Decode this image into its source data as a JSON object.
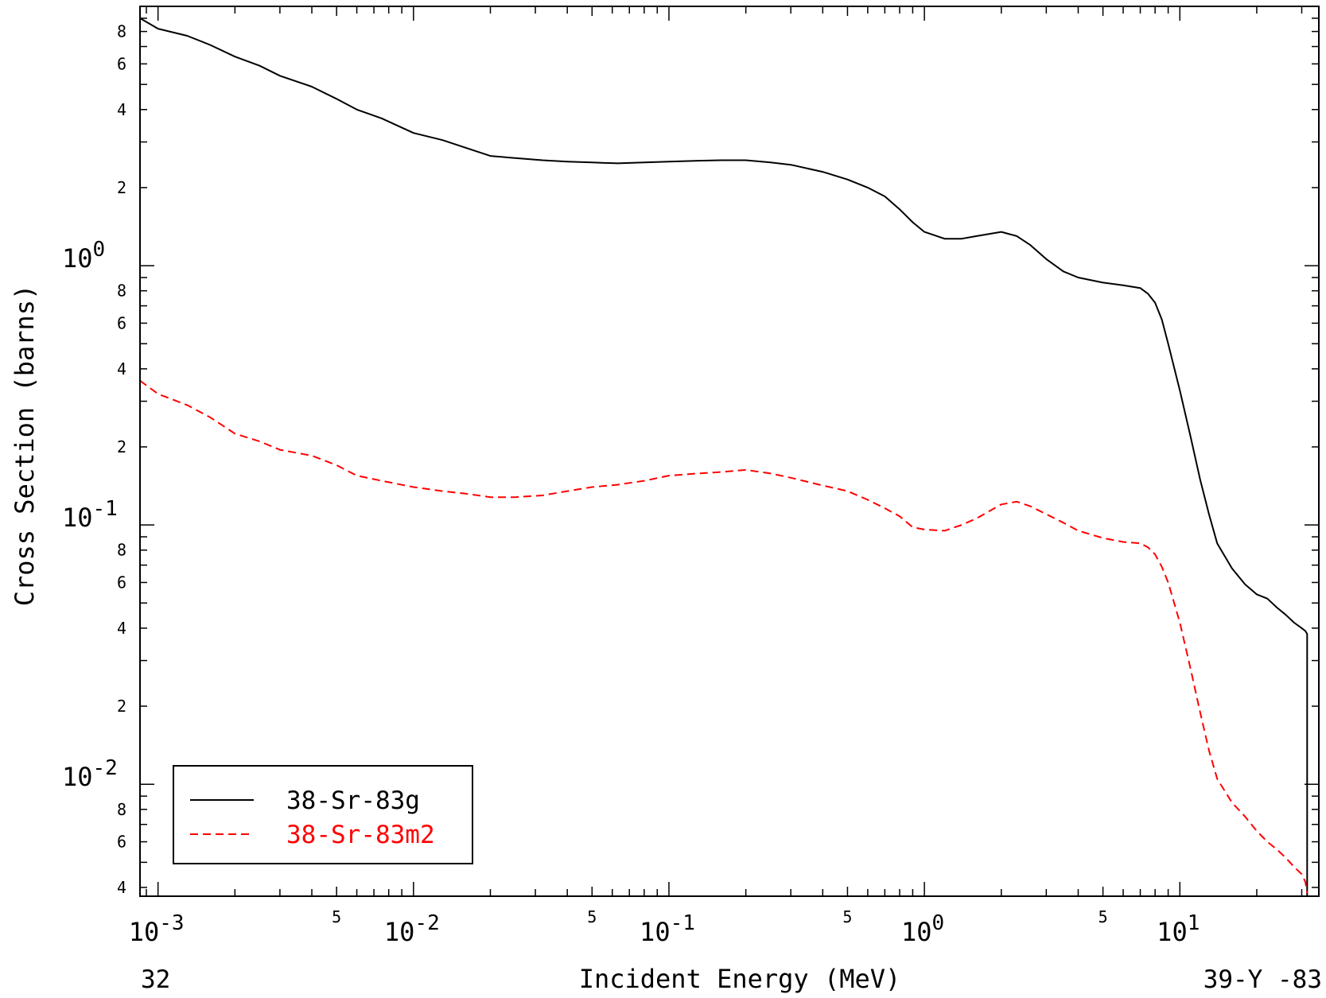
{
  "chart_data": {
    "type": "line",
    "xlabel": "Incident Energy (MeV)",
    "ylabel": "Cross Section (barns)",
    "x_scale": "log",
    "y_scale": "log",
    "xlim": [
      0.00085,
      35
    ],
    "ylim": [
      0.0037,
      10.0
    ],
    "grid": false,
    "legend_position": "bottom-left",
    "footer_left": "32",
    "footer_right": "39-Y -83",
    "x_major_ticks": [
      {
        "value": 0.001,
        "base": "10",
        "exp": "-3"
      },
      {
        "value": 0.01,
        "base": "10",
        "exp": "-2"
      },
      {
        "value": 0.1,
        "base": "10",
        "exp": "-1"
      },
      {
        "value": 1,
        "base": "10",
        "exp": "0"
      },
      {
        "value": 10,
        "base": "10",
        "exp": "1"
      }
    ],
    "x_minor_labels": [
      {
        "value": 0.005,
        "label": "5"
      },
      {
        "value": 0.05,
        "label": "5"
      },
      {
        "value": 0.5,
        "label": "5"
      },
      {
        "value": 5,
        "label": "5"
      }
    ],
    "y_major_ticks": [
      {
        "value": 1,
        "base": "10",
        "exp": "0"
      },
      {
        "value": 0.1,
        "base": "10",
        "exp": "-1"
      },
      {
        "value": 0.01,
        "base": "10",
        "exp": "-2"
      }
    ],
    "y_minor_labels": [
      {
        "value": 8,
        "label": "8"
      },
      {
        "value": 6,
        "label": "6"
      },
      {
        "value": 4,
        "label": "4"
      },
      {
        "value": 2,
        "label": "2"
      },
      {
        "value": 0.8,
        "label": "8"
      },
      {
        "value": 0.6,
        "label": "6"
      },
      {
        "value": 0.4,
        "label": "4"
      },
      {
        "value": 0.2,
        "label": "2"
      },
      {
        "value": 0.08,
        "label": "8"
      },
      {
        "value": 0.06,
        "label": "6"
      },
      {
        "value": 0.04,
        "label": "4"
      },
      {
        "value": 0.02,
        "label": "2"
      },
      {
        "value": 0.008,
        "label": "8"
      },
      {
        "value": 0.006,
        "label": "6"
      },
      {
        "value": 0.004,
        "label": "4"
      }
    ],
    "series": [
      {
        "name": "38-Sr-83g",
        "color": "#000000",
        "dash": "solid",
        "x": [
          0.00085,
          0.001,
          0.0013,
          0.0016,
          0.002,
          0.0025,
          0.003,
          0.004,
          0.005,
          0.006,
          0.0075,
          0.01,
          0.013,
          0.016,
          0.02,
          0.025,
          0.032,
          0.04,
          0.05,
          0.063,
          0.08,
          0.1,
          0.13,
          0.16,
          0.2,
          0.25,
          0.3,
          0.4,
          0.5,
          0.6,
          0.7,
          0.8,
          0.9,
          1.0,
          1.2,
          1.4,
          1.6,
          2.0,
          2.3,
          2.6,
          3.0,
          3.5,
          4.0,
          5.0,
          6.0,
          7.0,
          7.5,
          8.0,
          8.5,
          9.0,
          10.0,
          11.0,
          12.0,
          13.0,
          14.0,
          16.0,
          18.0,
          20.0,
          22.0,
          24.0,
          26.0,
          28.0,
          30.0,
          31.0,
          31.5,
          31.5
        ],
        "y": [
          9.0,
          8.2,
          7.7,
          7.1,
          6.4,
          5.9,
          5.4,
          4.9,
          4.4,
          4.0,
          3.7,
          3.25,
          3.05,
          2.85,
          2.65,
          2.6,
          2.55,
          2.52,
          2.5,
          2.48,
          2.5,
          2.52,
          2.54,
          2.55,
          2.55,
          2.5,
          2.45,
          2.3,
          2.15,
          2.0,
          1.85,
          1.65,
          1.47,
          1.35,
          1.27,
          1.27,
          1.3,
          1.35,
          1.3,
          1.2,
          1.06,
          0.95,
          0.9,
          0.86,
          0.84,
          0.82,
          0.78,
          0.72,
          0.62,
          0.5,
          0.33,
          0.22,
          0.15,
          0.11,
          0.085,
          0.068,
          0.059,
          0.054,
          0.052,
          0.048,
          0.045,
          0.042,
          0.04,
          0.039,
          0.038,
          0.0037
        ]
      },
      {
        "name": "38-Sr-83m2",
        "color": "#ff0000",
        "dash": "dashed",
        "x": [
          0.00085,
          0.001,
          0.0013,
          0.0016,
          0.002,
          0.0025,
          0.003,
          0.004,
          0.005,
          0.006,
          0.0075,
          0.01,
          0.013,
          0.016,
          0.02,
          0.025,
          0.032,
          0.04,
          0.05,
          0.063,
          0.08,
          0.1,
          0.13,
          0.16,
          0.2,
          0.25,
          0.3,
          0.4,
          0.5,
          0.6,
          0.7,
          0.8,
          0.9,
          1.0,
          1.2,
          1.4,
          1.6,
          2.0,
          2.3,
          2.6,
          3.0,
          3.5,
          4.0,
          5.0,
          6.0,
          7.0,
          7.5,
          8.0,
          8.5,
          9.0,
          10.0,
          11.0,
          12.0,
          13.0,
          14.0,
          16.0,
          18.0,
          20.0,
          22.0,
          24.0,
          26.0,
          28.0,
          30.0,
          31.0,
          31.5
        ],
        "y": [
          0.36,
          0.32,
          0.29,
          0.26,
          0.225,
          0.21,
          0.195,
          0.185,
          0.17,
          0.155,
          0.148,
          0.14,
          0.135,
          0.132,
          0.128,
          0.128,
          0.13,
          0.135,
          0.14,
          0.143,
          0.148,
          0.155,
          0.158,
          0.16,
          0.163,
          0.158,
          0.152,
          0.142,
          0.135,
          0.125,
          0.116,
          0.108,
          0.098,
          0.096,
          0.095,
          0.1,
          0.106,
          0.12,
          0.123,
          0.118,
          0.11,
          0.102,
          0.095,
          0.089,
          0.086,
          0.085,
          0.082,
          0.077,
          0.069,
          0.06,
          0.042,
          0.028,
          0.019,
          0.0135,
          0.0105,
          0.0085,
          0.0075,
          0.0066,
          0.006,
          0.0056,
          0.0052,
          0.0048,
          0.0045,
          0.0042,
          0.0038
        ]
      }
    ]
  }
}
